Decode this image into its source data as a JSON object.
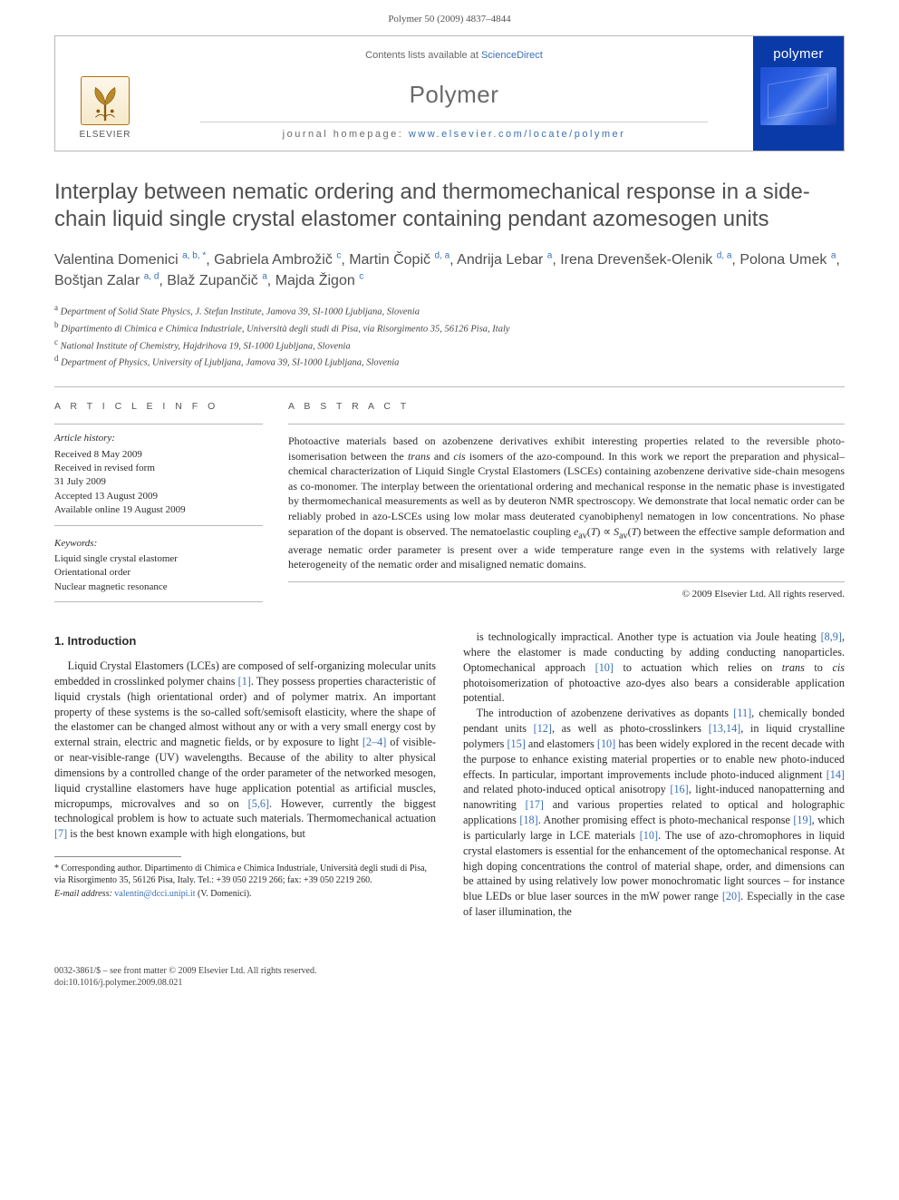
{
  "header": {
    "citation": "Polymer 50 (2009) 4837–4844"
  },
  "journal_box": {
    "contents_prefix": "Contents lists available at ",
    "contents_link": "ScienceDirect",
    "journal_name": "Polymer",
    "homepage_prefix": "journal homepage: ",
    "homepage_url": "www.elsevier.com/locate/polymer",
    "publisher_word": "ELSEVIER",
    "cover_title": "polymer",
    "cover_colors": {
      "background": "#0a3aa8",
      "text": "#ffffff"
    }
  },
  "title": "Interplay between nematic ordering and thermomechanical response in a side-chain liquid single crystal elastomer containing pendant azomesogen units",
  "authors_html": "Valentina Domenici <sup>a, b, *</sup>, Gabriela Ambrožič <sup>c</sup>, Martin Čopič <sup>d, a</sup>, Andrija Lebar <sup>a</sup>, Irena Drevenšek-Olenik <sup>d, a</sup>, Polona Umek <sup>a</sup>, Boštjan Zalar <sup>a, d</sup>, Blaž Zupančič <sup>a</sup>, Majda Žigon <sup>c</sup>",
  "affiliations": [
    {
      "key": "a",
      "text": "Department of Solid State Physics, J. Stefan Institute, Jamova 39, SI-1000 Ljubljana, Slovenia"
    },
    {
      "key": "b",
      "text": "Dipartimento di Chimica e Chimica Industriale, Università degli studi di Pisa, via Risorgimento 35, 56126 Pisa, Italy"
    },
    {
      "key": "c",
      "text": "National Institute of Chemistry, Hajdrihova 19, SI-1000 Ljubljana, Slovenia"
    },
    {
      "key": "d",
      "text": "Department of Physics, University of Ljubljana, Jamova 39, SI-1000 Ljubljana, Slovenia"
    }
  ],
  "article_info": {
    "heading": "A R T I C L E   I N F O",
    "history_label": "Article history:",
    "history": [
      "Received 8 May 2009",
      "Received in revised form",
      "31 July 2009",
      "Accepted 13 August 2009",
      "Available online 19 August 2009"
    ],
    "keywords_label": "Keywords:",
    "keywords": [
      "Liquid single crystal elastomer",
      "Orientational order",
      "Nuclear magnetic resonance"
    ]
  },
  "abstract": {
    "heading": "A B S T R A C T",
    "text_html": "Photoactive materials based on azobenzene derivatives exhibit interesting properties related to the reversible photo-isomerisation between the <em>trans</em> and <em>cis</em> isomers of the azo-compound. In this work we report the preparation and physical–chemical characterization of Liquid Single Crystal Elastomers (LSCEs) containing azobenzene derivative side-chain mesogens as co-monomer. The interplay between the orientational ordering and mechanical response in the nematic phase is investigated by thermomechanical measurements as well as by deuteron NMR spectroscopy. We demonstrate that local nematic order can be reliably probed in azo-LSCEs using low molar mass deuterated cyanobiphenyl nematogen in low concentrations. No phase separation of the dopant is observed. The nematoelastic coupling <em>e</em><sub>av</sub>(<em>T</em>) ∝ <em>S</em><sub>av</sub>(<em>T</em>) between the effective sample deformation and average nematic order parameter is present over a wide temperature range even in the systems with relatively large heterogeneity of the nematic order and misaligned nematic domains.",
    "copyright": "© 2009 Elsevier Ltd. All rights reserved."
  },
  "body": {
    "section_heading": "1. Introduction",
    "p1_html": "Liquid Crystal Elastomers (LCEs) are composed of self-organizing molecular units embedded in crosslinked polymer chains <span class=\"ref\">[1]</span>. They possess properties characteristic of liquid crystals (high orientational order) and of polymer matrix. An important property of these systems is the so-called soft/semisoft elasticity, where the shape of the elastomer can be changed almost without any or with a very small energy cost by external strain, electric and magnetic fields, or by exposure to light <span class=\"ref\">[2–4]</span> of visible- or near-visible-range (UV) wavelengths. Because of the ability to alter physical dimensions by a controlled change of the order parameter of the networked mesogen, liquid crystalline elastomers have huge application potential as artificial muscles, micropumps, microvalves and so on <span class=\"ref\">[5,6]</span>. However, currently the biggest technological problem is how to actuate such materials. Thermomechanical actuation <span class=\"ref\">[7]</span> is the best known example with high elongations, but",
    "p2_html": "is technologically impractical. Another type is actuation via Joule heating <span class=\"ref\">[8,9]</span>, where the elastomer is made conducting by adding conducting nanoparticles. Optomechanical approach <span class=\"ref\">[10]</span> to actuation which relies on <em>trans</em> to <em>cis</em> photoisomerization of photoactive azo-dyes also bears a considerable application potential.",
    "p3_html": "The introduction of azobenzene derivatives as dopants <span class=\"ref\">[11]</span>, chemically bonded pendant units <span class=\"ref\">[12]</span>, as well as photo-crosslinkers <span class=\"ref\">[13,14]</span>, in liquid crystalline polymers <span class=\"ref\">[15]</span> and elastomers <span class=\"ref\">[10]</span> has been widely explored in the recent decade with the purpose to enhance existing material properties or to enable new photo-induced effects. In particular, important improvements include photo-induced alignment <span class=\"ref\">[14]</span> and related photo-induced optical anisotropy <span class=\"ref\">[16]</span>, light-induced nanopatterning and nanowriting <span class=\"ref\">[17]</span> and various properties related to optical and holographic applications <span class=\"ref\">[18]</span>. Another promising effect is photo-mechanical response <span class=\"ref\">[19]</span>, which is particularly large in LCE materials <span class=\"ref\">[10]</span>. The use of azo-chromophores in liquid crystal elastomers is essential for the enhancement of the optomechanical response. At high doping concentrations the control of material shape, order, and dimensions can be attained by using relatively low power monochromatic light sources – for instance blue LEDs or blue laser sources in the mW power range <span class=\"ref\">[20]</span>. Especially in the case of laser illumination, the"
  },
  "footnotes": {
    "corr": "* Corresponding author. Dipartimento di Chimica e Chimica Industriale, Università degli studi di Pisa, via Risorgimento 35, 56126 Pisa, Italy. Tel.: +39 050 2219 266; fax: +39 050 2219 260.",
    "email_label": "E-mail address:",
    "email": "valentin@dcci.unipi.it",
    "email_suffix": "(V. Domenici)."
  },
  "footer": {
    "line1": "0032-3861/$ – see front matter © 2009 Elsevier Ltd. All rights reserved.",
    "line2": "doi:10.1016/j.polymer.2009.08.021"
  },
  "colors": {
    "link": "#3a6fb7",
    "text": "#2b2b2b",
    "muted": "#6a6a6a",
    "rule": "#b8b8b8"
  }
}
